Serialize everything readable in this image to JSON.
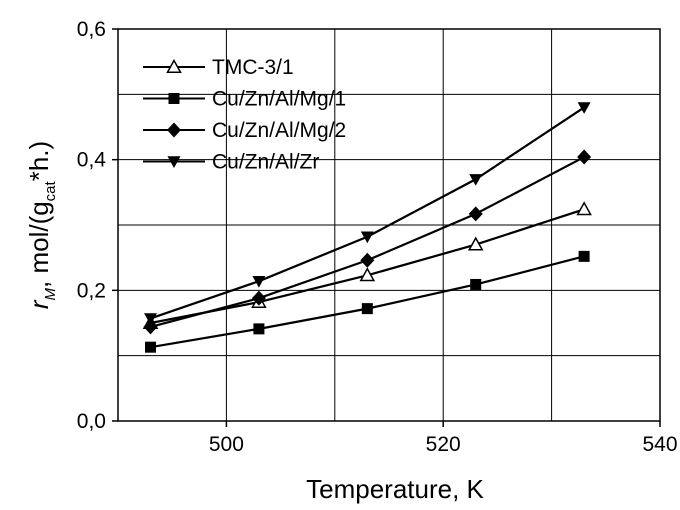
{
  "chart_data": {
    "type": "line",
    "xlabel": "Temperature, K",
    "ylabel": {
      "main": "r",
      "main_sub": "M",
      "sep": ", mol/(g",
      "sub": "cat",
      "tail": "*h.)"
    },
    "xlim": [
      490,
      540
    ],
    "ylim": [
      0.0,
      0.6
    ],
    "x_ticks": [
      {
        "value": 500,
        "label": "500"
      },
      {
        "value": 520,
        "label": "520"
      },
      {
        "value": 540,
        "label": "540"
      }
    ],
    "y_ticks": [
      {
        "value": 0.0,
        "label": "0,0"
      },
      {
        "value": 0.2,
        "label": "0,2"
      },
      {
        "value": 0.4,
        "label": "0,4"
      },
      {
        "value": 0.6,
        "label": "0,6"
      }
    ],
    "x_gridlines": [
      500,
      510,
      520,
      530
    ],
    "y_gridlines": [
      0.1,
      0.2,
      0.3,
      0.4,
      0.5
    ],
    "grid": true,
    "legend_position": "top-left",
    "x": [
      493,
      503,
      513,
      523,
      533
    ],
    "series": [
      {
        "name": "TMC-3/1",
        "marker": "triangle-up-open",
        "values": [
          0.15,
          0.182,
          0.223,
          0.27,
          0.324
        ]
      },
      {
        "name": "Cu/Zn/Al/Mg/1",
        "marker": "square-filled",
        "values": [
          0.113,
          0.141,
          0.172,
          0.209,
          0.252
        ]
      },
      {
        "name": "Cu/Zn/Al/Mg/2",
        "marker": "diamond-filled",
        "values": [
          0.144,
          0.188,
          0.246,
          0.317,
          0.404
        ]
      },
      {
        "name": "Cu/Zn/Al/Zr",
        "marker": "triangle-down-filled",
        "values": [
          0.157,
          0.214,
          0.282,
          0.37,
          0.48
        ]
      }
    ]
  }
}
